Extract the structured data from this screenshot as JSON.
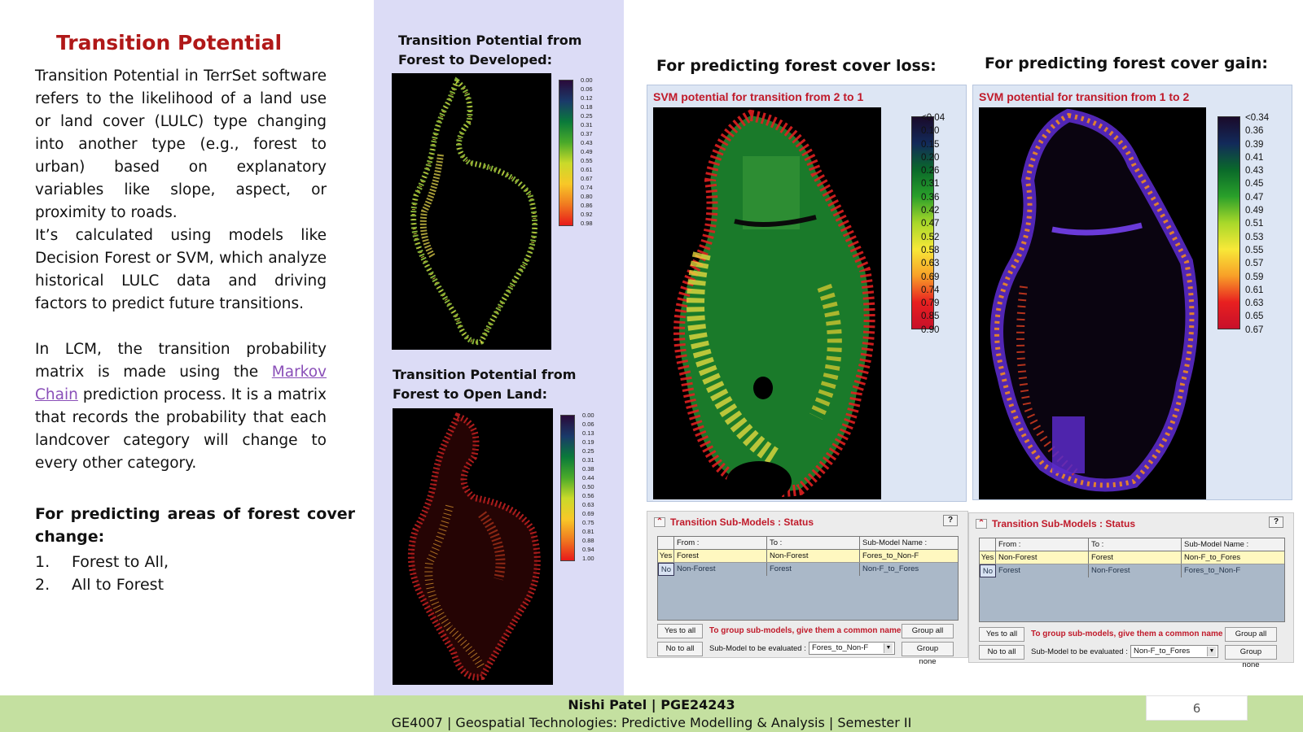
{
  "slide": {
    "title": "Transition Potential",
    "paragraph1": "Transition Potential in TerrSet software refers to the likelihood of a land use or land cover (LULC) type changing into another type (e.g., forest to urban) based on explanatory variables like slope, aspect, or proximity to roads.",
    "paragraph1b": "It’s calculated using models like Decision Forest or SVM, which analyze historical LULC data and driving factors to predict future transitions.",
    "paragraph2_start": "In LCM, the transition probability matrix is made using the ",
    "paragraph2_link": "Markov Chain",
    "paragraph2_end": " prediction process. It is a matrix that records the probability that each landcover category will change to every other category.",
    "paragraph3": "For predicting areas of forest cover change:",
    "list": [
      {
        "num": "1.",
        "text": "Forest to All,"
      },
      {
        "num": "2.",
        "text": "All to Forest"
      }
    ]
  },
  "maps": {
    "map1_caption_line1": "Transition Potential from",
    "map1_caption_line2": "Forest to Developed:",
    "map1_legend": [
      "0.00",
      "0.06",
      "0.12",
      "0.18",
      "0.25",
      "0.31",
      "0.37",
      "0.43",
      "0.49",
      "0.55",
      "0.61",
      "0.67",
      "0.74",
      "0.80",
      "0.86",
      "0.92",
      "0.98"
    ],
    "map2_caption_line1": "Transition Potential from",
    "map2_caption_line2": "Forest to Open Land:",
    "map2_legend": [
      "0.00",
      "0.06",
      "0.13",
      "0.19",
      "0.25",
      "0.31",
      "0.38",
      "0.44",
      "0.50",
      "0.56",
      "0.63",
      "0.69",
      "0.75",
      "0.81",
      "0.88",
      "0.94",
      "1.00"
    ]
  },
  "loss": {
    "heading": "For predicting forest cover loss:",
    "svm_title": "SVM potential for transition from 2 to 1",
    "legend": [
      "<0.04",
      "0.10",
      "0.15",
      "0.20",
      "0.26",
      "0.31",
      "0.36",
      "0.42",
      "0.47",
      "0.52",
      "0.58",
      "0.63",
      "0.69",
      "0.74",
      "0.79",
      "0.85",
      "0.90"
    ]
  },
  "gain": {
    "heading": "For predicting forest cover gain:",
    "svm_title": "SVM potential for transition from 1 to 2",
    "legend": [
      "<0.34",
      "0.36",
      "0.39",
      "0.41",
      "0.43",
      "0.45",
      "0.47",
      "0.49",
      "0.51",
      "0.53",
      "0.55",
      "0.57",
      "0.59",
      "0.61",
      "0.63",
      "0.65",
      "0.67"
    ]
  },
  "dialog_loss": {
    "title": "Transition Sub-Models : Status",
    "help": "?",
    "col_from": "From :",
    "col_to": "To :",
    "col_name": "Sub-Model Name :",
    "row1": {
      "flag": "Yes",
      "from": "Forest",
      "to": "Non-Forest",
      "name": "Fores_to_Non-F"
    },
    "row2": {
      "flag": "No",
      "from": "Non-Forest",
      "to": "Forest",
      "name": "Non-F_to_Fores"
    },
    "yes_to_all": "Yes to all",
    "no_to_all": "No to all",
    "hint": "To group sub-models, give them a common name",
    "group_all": "Group all",
    "group_none": "Group none",
    "eval_label": "Sub-Model to be evaluated :",
    "eval_value": "Fores_to_Non-F"
  },
  "dialog_gain": {
    "title": "Transition Sub-Models : Status",
    "help": "?",
    "col_from": "From :",
    "col_to": "To :",
    "col_name": "Sub-Model Name :",
    "row1": {
      "flag": "Yes",
      "from": "Non-Forest",
      "to": "Forest",
      "name": "Non-F_to_Fores"
    },
    "row2": {
      "flag": "No",
      "from": "Forest",
      "to": "Non-Forest",
      "name": "Fores_to_Non-F"
    },
    "yes_to_all": "Yes to all",
    "no_to_all": "No to all",
    "hint": "To group sub-models, give them a common name",
    "group_all": "Group all",
    "group_none": "Group none",
    "eval_label": "Sub-Model to be evaluated :",
    "eval_value": "Non-F_to_Fores"
  },
  "footer": {
    "name": "Nishi Patel | PGE24243",
    "course": "GE4007 | Geospatial Technologies: Predictive Modelling & Analysis | Semester II",
    "page": "6"
  },
  "colors": {
    "title_red": "#b01818",
    "lavender": "#dcdcf6",
    "footer_green": "#c4e0a0",
    "panel_blue": "#dde6f4",
    "dialog_red": "#c01a2a"
  }
}
